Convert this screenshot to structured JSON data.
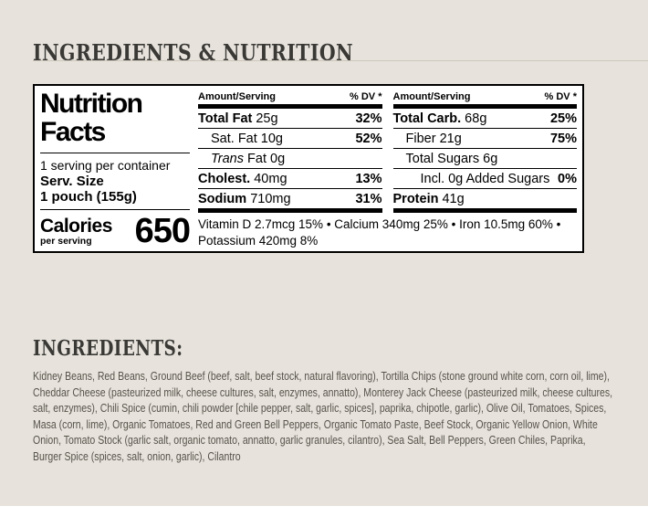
{
  "section": {
    "title": "INGREDIENTS & NUTRITION"
  },
  "nutrition_label": {
    "title_line1": "Nutrition",
    "title_line2": "Facts",
    "servings_per_container": "1 serving per container",
    "serving_size_label": "Serv. Size",
    "serving_size_value": "1 pouch (155g)",
    "calories_label": "Calories",
    "calories_sublabel": "per serving",
    "calories_value": "650",
    "amount_header": "Amount/Serving",
    "dv_header": "% DV *",
    "columns": [
      {
        "rows": [
          {
            "parts": [
              {
                "t": "Total Fat",
                "b": true
              },
              {
                "t": " 25g"
              }
            ],
            "dv": "32%",
            "indent": 0
          },
          {
            "parts": [
              {
                "t": "Sat. Fat 10g"
              }
            ],
            "dv": "52%",
            "indent": 1
          },
          {
            "parts": [
              {
                "t": "Trans",
                "i": true
              },
              {
                "t": " Fat 0g"
              }
            ],
            "dv": "",
            "indent": 1
          },
          {
            "parts": [
              {
                "t": "Cholest.",
                "b": true
              },
              {
                "t": " 40mg"
              }
            ],
            "dv": "13%",
            "indent": 0
          },
          {
            "parts": [
              {
                "t": "Sodium",
                "b": true
              },
              {
                "t": " 710mg"
              }
            ],
            "dv": "31%",
            "indent": 0
          }
        ]
      },
      {
        "rows": [
          {
            "parts": [
              {
                "t": "Total Carb.",
                "b": true
              },
              {
                "t": " 68g"
              }
            ],
            "dv": "25%",
            "indent": 0
          },
          {
            "parts": [
              {
                "t": "Fiber 21g"
              }
            ],
            "dv": "75%",
            "indent": 1
          },
          {
            "parts": [
              {
                "t": "Total Sugars 6g"
              }
            ],
            "dv": "",
            "indent": 1
          },
          {
            "parts": [
              {
                "t": "Incl. 0g Added Sugars"
              }
            ],
            "dv": "0%",
            "indent": 2
          },
          {
            "parts": [
              {
                "t": "Protein",
                "b": true
              },
              {
                "t": " 41g"
              }
            ],
            "dv": "",
            "indent": 0
          }
        ]
      }
    ],
    "footnote": "Vitamin D 2.7mcg 15% • Calcium 340mg 25% • Iron 10.5mg 60% • Potassium 420mg 8%"
  },
  "ingredients": {
    "title": "INGREDIENTS:",
    "text": "Kidney Beans, Red Beans, Ground Beef (beef, salt, beef stock, natural flavoring), Tortilla Chips (stone ground white corn, corn oil, lime), Cheddar Cheese (pasteurized milk, cheese cultures, salt, enzymes, annatto), Monterey Jack Cheese (pasteurized milk, cheese cultures, salt, enzymes), Chili Spice (cumin, chili powder [chile pepper, salt, garlic, spices], paprika, chipotle, garlic), Olive Oil, Tomatoes, Spices, Masa (corn, lime), Organic Tomatoes, Red and Green Bell Peppers, Organic Tomato Paste, Beef Stock, Organic Yellow Onion, White Onion, Tomato Stock (garlic salt, organic tomato, annatto, garlic granules, cilantro), Sea Salt, Bell Peppers, Green Chiles, Paprika, Burger Spice (spices, salt, onion, garlic), Cilantro"
  },
  "colors": {
    "page_bg": "#e7e3dc",
    "heading": "#3a3936",
    "body_text": "#56534b",
    "divider": "#cdc6bb",
    "label_bg": "#ffffff",
    "label_ink": "#000000"
  }
}
